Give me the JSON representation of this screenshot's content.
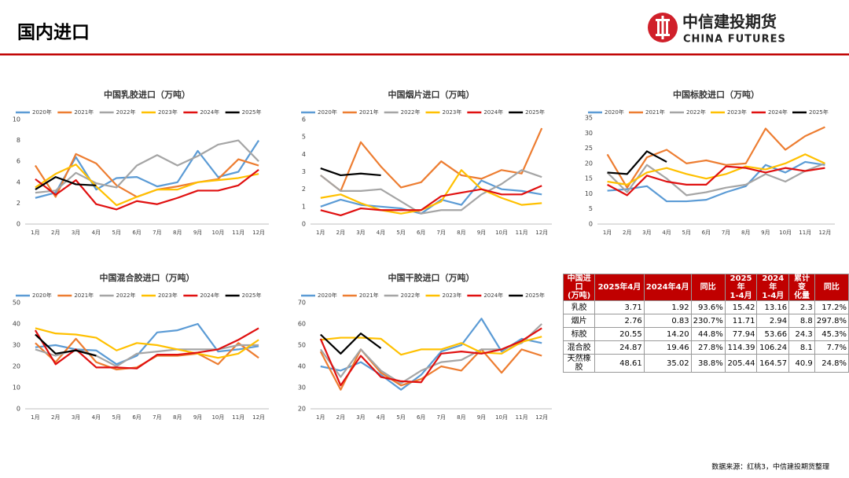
{
  "header": {
    "title": "国内进口",
    "logo_cn": "中信建投期货",
    "logo_en": "CHINA FUTURES"
  },
  "chart_data": [
    {
      "type": "line",
      "title": "中国乳胶进口（万吨）",
      "categories": [
        "1月",
        "2月",
        "3月",
        "4月",
        "5月",
        "6月",
        "7月",
        "8月",
        "9月",
        "10月",
        "11月",
        "12月"
      ],
      "ylim": [
        0,
        10
      ],
      "yticks": [
        0,
        2,
        4,
        6,
        8,
        10
      ],
      "grid": false,
      "legend": "top",
      "series": [
        {
          "name": "2020年",
          "color": "#5b9bd5",
          "values": [
            2.5,
            3.0,
            6.4,
            3.3,
            4.4,
            4.5,
            3.6,
            4.0,
            7.0,
            4.5,
            5.0,
            8.0
          ]
        },
        {
          "name": "2021年",
          "color": "#ed7d31",
          "values": [
            5.6,
            2.6,
            6.7,
            5.8,
            3.7,
            2.6,
            3.3,
            3.6,
            4.0,
            4.3,
            6.2,
            5.6
          ]
        },
        {
          "name": "2022年",
          "color": "#a5a5a5",
          "values": [
            3.0,
            3.2,
            4.9,
            3.9,
            3.5,
            5.6,
            6.6,
            5.6,
            6.5,
            7.6,
            8.0,
            6.0
          ]
        },
        {
          "name": "2023年",
          "color": "#ffc000",
          "values": [
            3.5,
            4.8,
            5.7,
            3.6,
            1.8,
            2.6,
            3.3,
            3.3,
            4.0,
            4.2,
            4.4,
            4.8
          ]
        },
        {
          "name": "2024年",
          "color": "#e01010",
          "values": [
            4.3,
            2.8,
            4.2,
            1.9,
            1.4,
            2.2,
            1.9,
            2.5,
            3.2,
            3.2,
            3.7,
            5.2
          ]
        },
        {
          "name": "2025年",
          "color": "#000000",
          "values": [
            3.3,
            4.5,
            3.8,
            3.7,
            null,
            null,
            null,
            null,
            null,
            null,
            null,
            null
          ]
        }
      ]
    },
    {
      "type": "line",
      "title": "中国烟片进口（万吨）",
      "categories": [
        "1月",
        "2月",
        "3月",
        "4月",
        "5月",
        "6月",
        "7月",
        "8月",
        "9月",
        "10月",
        "11月",
        "12月"
      ],
      "ylim": [
        0,
        6
      ],
      "yticks": [
        0,
        1,
        2,
        3,
        4,
        5,
        6
      ],
      "grid": false,
      "legend": "top",
      "series": [
        {
          "name": "2020年",
          "color": "#5b9bd5",
          "values": [
            1.0,
            1.4,
            1.1,
            1.0,
            0.9,
            0.6,
            1.4,
            1.1,
            2.5,
            2.0,
            1.9,
            1.7
          ]
        },
        {
          "name": "2021年",
          "color": "#ed7d31",
          "values": [
            2.8,
            1.9,
            4.7,
            3.3,
            2.1,
            2.4,
            3.6,
            2.8,
            2.6,
            3.1,
            2.9,
            5.5
          ]
        },
        {
          "name": "2022年",
          "color": "#a5a5a5",
          "values": [
            2.8,
            1.9,
            1.9,
            2.0,
            1.3,
            0.6,
            0.8,
            0.8,
            1.7,
            2.3,
            3.1,
            2.7
          ]
        },
        {
          "name": "2023年",
          "color": "#ffc000",
          "values": [
            1.5,
            1.7,
            1.2,
            0.8,
            0.6,
            0.8,
            1.3,
            3.1,
            2.0,
            1.5,
            1.1,
            1.2
          ]
        },
        {
          "name": "2024年",
          "color": "#e01010",
          "values": [
            0.8,
            0.5,
            0.9,
            0.8,
            0.8,
            0.8,
            1.6,
            1.8,
            2.0,
            1.7,
            1.7,
            2.2
          ]
        },
        {
          "name": "2025年",
          "color": "#000000",
          "values": [
            3.2,
            2.8,
            2.9,
            2.8,
            null,
            null,
            null,
            null,
            null,
            null,
            null,
            null
          ]
        }
      ]
    },
    {
      "type": "line",
      "title": "中国标胶进口（万吨）",
      "categories": [
        "1月",
        "2月",
        "3月",
        "4月",
        "5月",
        "6月",
        "7月",
        "8月",
        "9月",
        "10月",
        "11月",
        "12月"
      ],
      "ylim": [
        0,
        35
      ],
      "yticks": [
        0,
        5,
        10,
        15,
        20,
        25,
        30,
        35
      ],
      "grid": false,
      "legend": "top",
      "series": [
        {
          "name": "2020年",
          "color": "#5b9bd5",
          "values": [
            11,
            11.5,
            12.5,
            7.5,
            7.5,
            8,
            10.5,
            12.5,
            19.5,
            17,
            20.5,
            19.5
          ]
        },
        {
          "name": "2021年",
          "color": "#ed7d31",
          "values": [
            23,
            12,
            22,
            24.5,
            20,
            21,
            19.5,
            20,
            31.5,
            24.5,
            29,
            32
          ]
        },
        {
          "name": "2022年",
          "color": "#a5a5a5",
          "values": [
            17,
            10.5,
            19.5,
            15,
            9.5,
            10.5,
            12,
            13,
            16.5,
            14,
            17.5,
            20
          ]
        },
        {
          "name": "2023年",
          "color": "#ffc000",
          "values": [
            14,
            13,
            17,
            18.5,
            16.5,
            15,
            16.5,
            19,
            18,
            20,
            23,
            20
          ]
        },
        {
          "name": "2024年",
          "color": "#e01010",
          "values": [
            13,
            9.5,
            16,
            14,
            13,
            13,
            19,
            18.5,
            17,
            18.5,
            17.5,
            18.5
          ]
        },
        {
          "name": "2025年",
          "color": "#000000",
          "values": [
            17,
            16.5,
            24,
            20.5,
            null,
            null,
            null,
            null,
            null,
            null,
            null,
            null
          ]
        }
      ]
    },
    {
      "type": "line",
      "title": "中国混合胶进口（万吨）",
      "categories": [
        "1月",
        "2月",
        "3月",
        "4月",
        "5月",
        "6月",
        "7月",
        "8月",
        "9月",
        "10月",
        "11月",
        "12月"
      ],
      "ylim": [
        0,
        50
      ],
      "yticks": [
        0,
        10,
        20,
        30,
        40,
        50
      ],
      "grid": false,
      "legend": "top",
      "series": [
        {
          "name": "2020年",
          "color": "#5b9bd5",
          "values": [
            29,
            30,
            28,
            27.5,
            21,
            25,
            36,
            37,
            40,
            27,
            28,
            29.5
          ]
        },
        {
          "name": "2021年",
          "color": "#ed7d31",
          "values": [
            31,
            22,
            33,
            22,
            18.5,
            19.5,
            25,
            25,
            26,
            21,
            31,
            24
          ]
        },
        {
          "name": "2022年",
          "color": "#a5a5a5",
          "values": [
            28,
            25,
            28,
            25,
            20,
            26,
            27,
            28,
            28,
            28,
            30,
            30
          ]
        },
        {
          "name": "2023年",
          "color": "#ffc000",
          "values": [
            38,
            35.5,
            35,
            33.5,
            27.5,
            31,
            30,
            28,
            26,
            24,
            26,
            32.5
          ]
        },
        {
          "name": "2024年",
          "color": "#e01010",
          "values": [
            37,
            21,
            28,
            19.5,
            19.5,
            19,
            25.5,
            25.5,
            26.5,
            28,
            32.5,
            38
          ]
        },
        {
          "name": "2025年",
          "color": "#000000",
          "values": [
            35,
            26,
            27.5,
            25,
            null,
            null,
            null,
            null,
            null,
            null,
            null,
            null
          ]
        }
      ]
    },
    {
      "type": "line",
      "title": "中国干胶进口（万吨）",
      "categories": [
        "1月",
        "2月",
        "3月",
        "4月",
        "5月",
        "6月",
        "7月",
        "8月",
        "9月",
        "10月",
        "11月",
        "12月"
      ],
      "ylim": [
        20,
        70
      ],
      "yticks": [
        20,
        30,
        40,
        50,
        60,
        70
      ],
      "grid": false,
      "legend": "top",
      "series": [
        {
          "name": "2020年",
          "color": "#5b9bd5",
          "values": [
            40,
            38,
            42,
            36,
            29,
            36,
            47,
            50,
            62.5,
            47,
            53,
            51
          ]
        },
        {
          "name": "2021年",
          "color": "#ed7d31",
          "values": [
            47,
            29,
            48,
            37,
            31,
            34,
            40,
            38,
            48,
            37,
            48,
            45
          ]
        },
        {
          "name": "2022年",
          "color": "#a5a5a5",
          "values": [
            48,
            35,
            48,
            38,
            32,
            38,
            42,
            43,
            48,
            48,
            51,
            60
          ]
        },
        {
          "name": "2023年",
          "color": "#ffc000",
          "values": [
            52.5,
            53.5,
            53.5,
            53,
            45.5,
            48,
            48,
            51,
            46.5,
            46,
            51.5,
            54
          ]
        },
        {
          "name": "2024年",
          "color": "#e01010",
          "values": [
            53,
            31,
            45,
            35,
            33,
            32.5,
            46,
            47,
            46,
            48,
            52,
            58
          ]
        },
        {
          "name": "2025年",
          "color": "#000000",
          "values": [
            55,
            46,
            55.5,
            48.5,
            null,
            null,
            null,
            null,
            null,
            null,
            null,
            null
          ]
        }
      ]
    }
  ],
  "table": {
    "header": [
      "中国进口\n(万吨)",
      "2025年4月",
      "2024年4月",
      "同比",
      "2025年\n1-4月",
      "2024年\n1-4月",
      "累计变\n化量",
      "同比"
    ],
    "rows": [
      [
        "乳胶",
        "3.71",
        "1.92",
        "93.6%",
        "15.42",
        "13.16",
        "2.3",
        "17.2%"
      ],
      [
        "烟片",
        "2.76",
        "0.83",
        "230.7%",
        "11.71",
        "2.94",
        "8.8",
        "297.8%"
      ],
      [
        "标胶",
        "20.55",
        "14.20",
        "44.8%",
        "77.94",
        "53.66",
        "24.3",
        "45.3%"
      ],
      [
        "混合胶",
        "24.87",
        "19.46",
        "27.8%",
        "114.39",
        "106.24",
        "8.1",
        "7.7%"
      ],
      [
        "天然橡胶",
        "48.61",
        "35.02",
        "38.8%",
        "205.44",
        "164.57",
        "40.9",
        "24.8%"
      ]
    ]
  },
  "source": "数据来源：红桃3，中信建投期货整理"
}
